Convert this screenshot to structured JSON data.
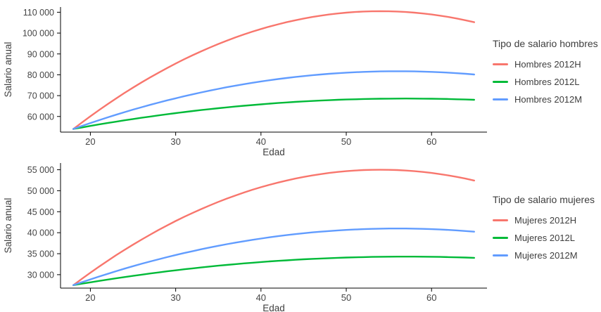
{
  "figure": {
    "background": "#ffffff",
    "text_color": "#3e3e3e",
    "axis_color": "#000000"
  },
  "chart_data": [
    {
      "type": "line",
      "title": "",
      "xlabel": "Edad",
      "ylabel": "Salario anual",
      "legend_title": "Tipo de salario hombres",
      "legend_position": "right",
      "grid": false,
      "xlim": [
        16.5,
        66.5
      ],
      "ylim": [
        52500,
        112500
      ],
      "x_ticks": [
        20,
        30,
        40,
        50,
        60
      ],
      "x_tick_labels": [
        "20",
        "30",
        "40",
        "50",
        "60"
      ],
      "y_ticks": [
        60000,
        70000,
        80000,
        90000,
        100000,
        110000
      ],
      "y_tick_labels": [
        "60 000",
        "70 000",
        "80 000",
        "90 000",
        "100 000",
        "110 000"
      ],
      "x": [
        18,
        19,
        20,
        21,
        22,
        23,
        24,
        25,
        26,
        27,
        28,
        29,
        30,
        31,
        32,
        33,
        34,
        35,
        36,
        37,
        38,
        39,
        40,
        41,
        42,
        43,
        44,
        45,
        46,
        47,
        48,
        49,
        50,
        51,
        52,
        53,
        54,
        55,
        56,
        57,
        58,
        59,
        60,
        61,
        62,
        63,
        64,
        65
      ],
      "series": [
        {
          "name": "Hombres 2012H",
          "color": "#F8766D",
          "values": [
            53990,
            57090,
            60100,
            63020,
            65850,
            68600,
            71260,
            73830,
            76320,
            78720,
            81030,
            83250,
            85390,
            87440,
            89400,
            91270,
            93060,
            94760,
            96370,
            97900,
            99340,
            100690,
            101950,
            103130,
            104220,
            105220,
            106140,
            106970,
            107710,
            108360,
            108930,
            109410,
            109800,
            110110,
            110330,
            110460,
            110500,
            110460,
            110330,
            110110,
            109800,
            109410,
            108930,
            108360,
            107710,
            106970,
            106140,
            105220
          ]
        },
        {
          "name": "Hombres 2012L",
          "color": "#00BA38",
          "values": [
            54000,
            54740,
            55460,
            56160,
            56840,
            57500,
            58150,
            58770,
            59370,
            59960,
            60530,
            61070,
            61600,
            62110,
            62600,
            63070,
            63520,
            63950,
            64370,
            64760,
            65130,
            65490,
            65830,
            66140,
            66440,
            66720,
            66980,
            67220,
            67440,
            67640,
            67820,
            67990,
            68130,
            68250,
            68360,
            68450,
            68510,
            68560,
            68590,
            68600,
            68590,
            68560,
            68510,
            68450,
            68360,
            68250,
            68130,
            67990
          ]
        },
        {
          "name": "Hombres 2012M",
          "color": "#619CFF",
          "values": [
            54000,
            55440,
            56840,
            58200,
            59530,
            60810,
            62060,
            63270,
            64440,
            65570,
            66660,
            67720,
            68730,
            69710,
            70650,
            71550,
            72420,
            73240,
            74030,
            74780,
            75490,
            76160,
            76790,
            77380,
            77940,
            78460,
            78940,
            79380,
            79780,
            80150,
            80470,
            80760,
            81010,
            81220,
            81390,
            81530,
            81620,
            81680,
            81700,
            81680,
            81620,
            81530,
            81390,
            81220,
            81010,
            80760,
            80470,
            80150
          ]
        }
      ]
    },
    {
      "type": "line",
      "title": "",
      "xlabel": "Edad",
      "ylabel": "Salario anual",
      "legend_title": "Tipo de salario mujeres",
      "legend_position": "right",
      "grid": false,
      "xlim": [
        16.5,
        66.5
      ],
      "ylim": [
        26800,
        56600
      ],
      "x_ticks": [
        20,
        30,
        40,
        50,
        60
      ],
      "x_tick_labels": [
        "20",
        "30",
        "40",
        "50",
        "60"
      ],
      "y_ticks": [
        30000,
        35000,
        40000,
        45000,
        50000,
        55000
      ],
      "y_tick_labels": [
        "30 000",
        "35 000",
        "40 000",
        "45 000",
        "50 000",
        "55 000"
      ],
      "x": [
        18,
        19,
        20,
        21,
        22,
        23,
        24,
        25,
        26,
        27,
        28,
        29,
        30,
        31,
        32,
        33,
        34,
        35,
        36,
        37,
        38,
        39,
        40,
        41,
        42,
        43,
        44,
        45,
        46,
        47,
        48,
        49,
        50,
        51,
        52,
        53,
        54,
        55,
        56,
        57,
        58,
        59,
        60,
        61,
        62,
        63,
        64,
        65
      ],
      "series": [
        {
          "name": "Mujeres 2012H",
          "color": "#F8766D",
          "values": [
            27500,
            29010,
            30470,
            31890,
            33270,
            34610,
            35900,
            37150,
            38360,
            39530,
            40660,
            41740,
            42780,
            43780,
            44730,
            45640,
            46510,
            47340,
            48130,
            48870,
            49570,
            50230,
            50840,
            51410,
            51940,
            52430,
            52880,
            53280,
            53640,
            53960,
            54240,
            54470,
            54660,
            54810,
            54920,
            54980,
            55000,
            54980,
            54920,
            54810,
            54660,
            54470,
            54240,
            53960,
            53640,
            53280,
            52880,
            52430
          ]
        },
        {
          "name": "Mujeres 2012L",
          "color": "#00BA38",
          "values": [
            27500,
            27850,
            28180,
            28510,
            28820,
            29130,
            29430,
            29720,
            30000,
            30280,
            30540,
            30800,
            31040,
            31280,
            31510,
            31730,
            31940,
            32140,
            32330,
            32510,
            32690,
            32850,
            33010,
            33160,
            33290,
            33420,
            33550,
            33660,
            33760,
            33850,
            33940,
            34010,
            34080,
            34140,
            34190,
            34230,
            34260,
            34280,
            34300,
            34300,
            34300,
            34280,
            34260,
            34230,
            34190,
            34140,
            34080,
            34010
          ]
        },
        {
          "name": "Mujeres 2012M",
          "color": "#619CFF",
          "values": [
            27500,
            28200,
            28880,
            29550,
            30190,
            30820,
            31430,
            32020,
            32590,
            33140,
            33670,
            34180,
            34680,
            35160,
            35610,
            36050,
            36480,
            36880,
            37260,
            37630,
            37970,
            38300,
            38610,
            38900,
            39170,
            39420,
            39650,
            39870,
            40070,
            40240,
            40400,
            40540,
            40660,
            40770,
            40850,
            40920,
            40960,
            40990,
            41000,
            40990,
            40960,
            40920,
            40850,
            40770,
            40660,
            40540,
            40400,
            40240
          ]
        }
      ]
    }
  ]
}
